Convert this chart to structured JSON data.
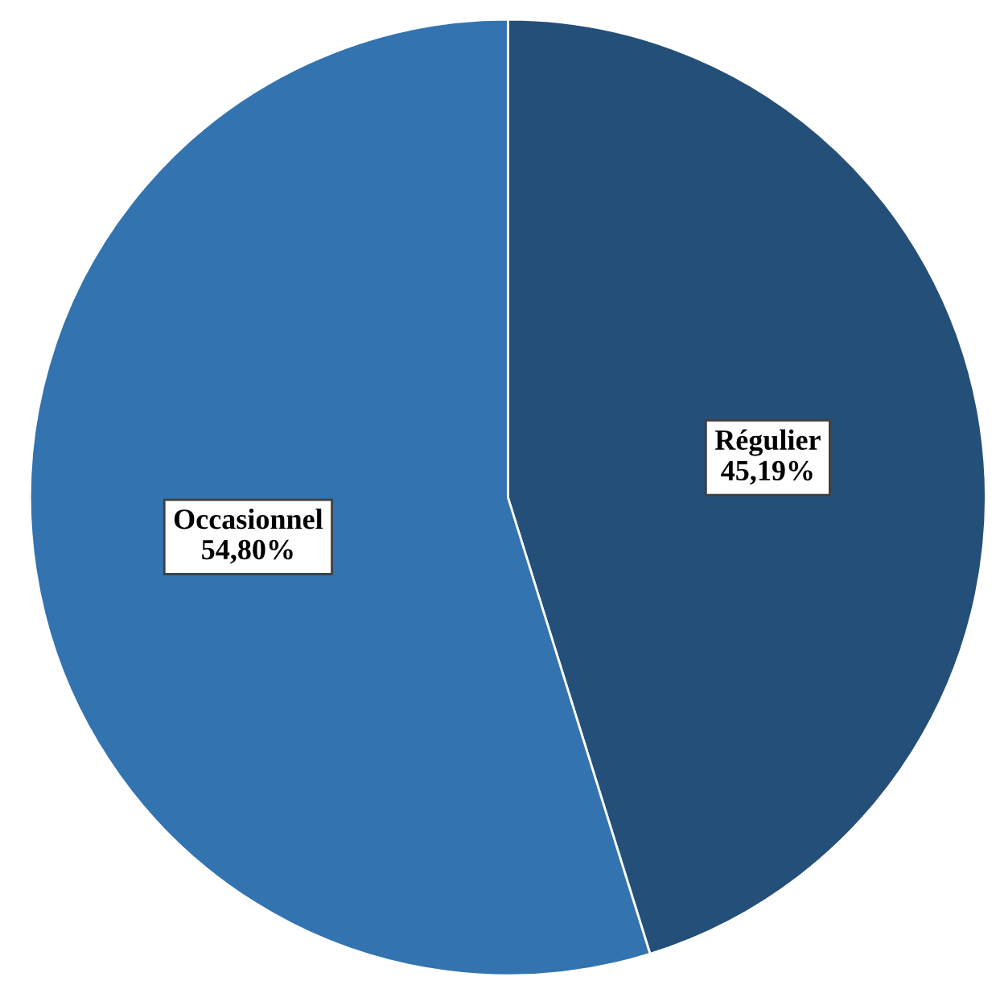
{
  "chart_data": {
    "type": "pie",
    "categories": [
      "Régulier",
      "Occasionnel"
    ],
    "values": [
      45.19,
      54.8
    ],
    "colors": [
      "#244f78",
      "#3273b0"
    ],
    "value_labels": [
      "45,19%",
      "54,80%"
    ],
    "legend": false
  }
}
